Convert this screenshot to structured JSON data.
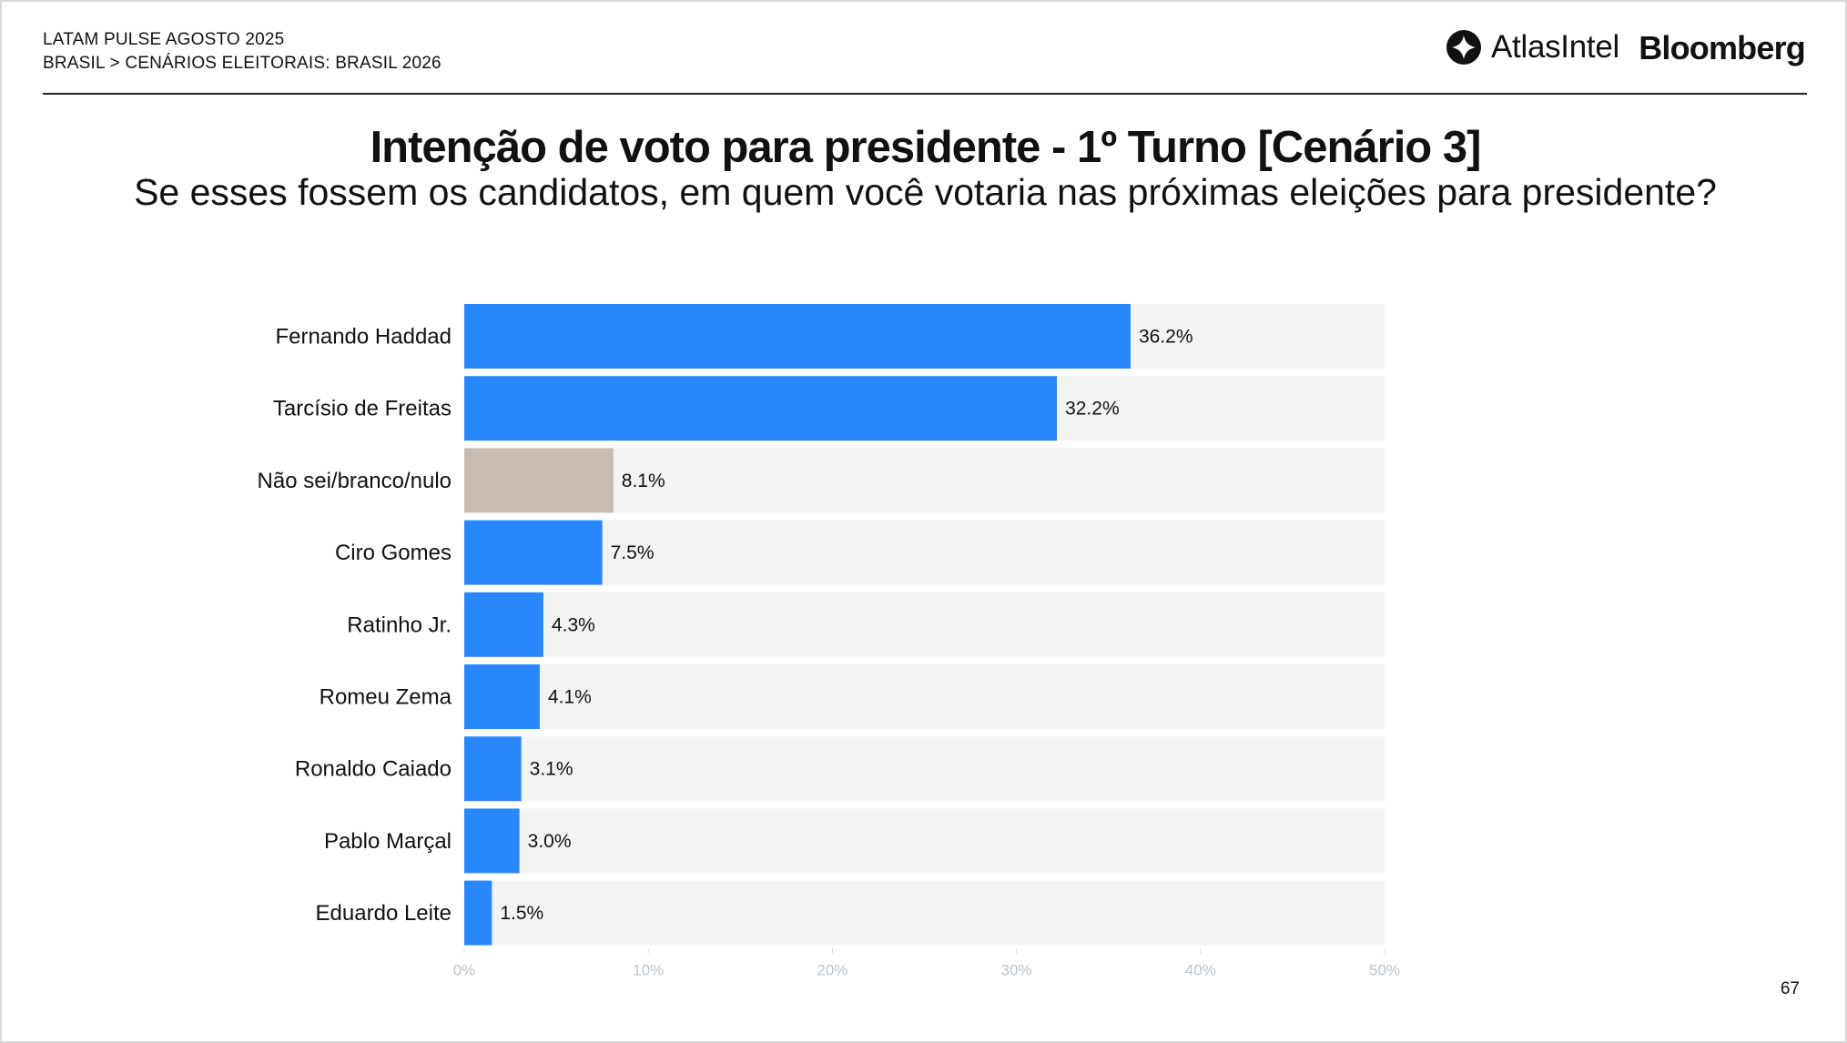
{
  "header": {
    "line1": "LATAM PULSE AGOSTO 2025",
    "line2": "BRASIL > CENÁRIOS ELEITORAIS: BRASIL 2026"
  },
  "logos": {
    "atlas": {
      "icon": "atlas-logo-icon",
      "text": "AtlasIntel"
    },
    "bloomberg": "Bloomberg"
  },
  "page_number": "67",
  "colors": {
    "candidate_bar": "#2a87fb",
    "undecided_bar": "#c9bbb2",
    "track": "#f3f3f2",
    "tick_text": "#b9c2cc"
  },
  "chart_data": {
    "type": "bar",
    "orientation": "horizontal",
    "title": "Intenção de voto para presidente - 1º Turno [Cenário 3]",
    "subtitle": "Se esses fossem os candidatos, em quem você votaria nas próximas eleições para presidente?",
    "categories": [
      "Fernando Haddad",
      "Tarcísio de Freitas",
      "Não sei/branco/nulo",
      "Ciro Gomes",
      "Ratinho Jr.",
      "Romeu Zema",
      "Ronaldo Caiado",
      "Pablo Marçal",
      "Eduardo Leite"
    ],
    "values": [
      36.2,
      32.2,
      8.1,
      7.5,
      4.3,
      4.1,
      3.1,
      3.0,
      1.5
    ],
    "value_labels": [
      "36.2%",
      "32.2%",
      "8.1%",
      "7.5%",
      "4.3%",
      "4.1%",
      "3.1%",
      "3.0%",
      "1.5%"
    ],
    "bar_colors": [
      "#2a87fb",
      "#2a87fb",
      "#c9bbb2",
      "#2a87fb",
      "#2a87fb",
      "#2a87fb",
      "#2a87fb",
      "#2a87fb",
      "#2a87fb"
    ],
    "xlim": [
      0,
      50
    ],
    "xticks": [
      0,
      10,
      20,
      30,
      40,
      50
    ],
    "xtick_labels": [
      "0%",
      "10%",
      "20%",
      "30%",
      "40%",
      "50%"
    ],
    "grid": false,
    "legend": "none"
  }
}
